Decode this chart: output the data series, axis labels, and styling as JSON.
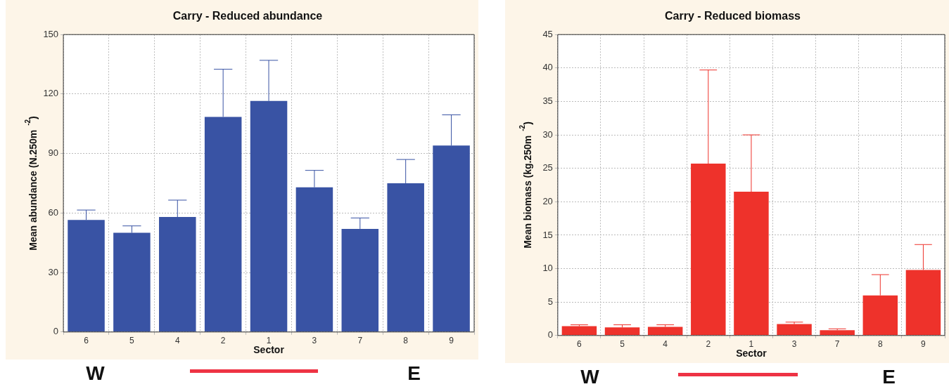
{
  "chart_data": [
    {
      "type": "bar",
      "title": "Carry - Reduced abundance",
      "xlabel": "Sector",
      "ylabel": "Mean abundance (N.250m$^{-2}$)",
      "categories": [
        "6",
        "5",
        "4",
        "2",
        "1",
        "3",
        "7",
        "8",
        "9"
      ],
      "values": [
        56.5,
        50,
        58,
        108.5,
        116.5,
        73,
        52,
        75,
        94
      ],
      "color": "#3953a4",
      "errors": [
        [
          56.5,
          61.5
        ],
        [
          50,
          53.5
        ],
        [
          58,
          66.5
        ],
        [
          108.5,
          132.5
        ],
        [
          116.5,
          137
        ],
        [
          73,
          81.5
        ],
        [
          52,
          57.5
        ],
        [
          75,
          87
        ],
        [
          94,
          109.5
        ]
      ],
      "ylim": [
        0,
        150
      ],
      "yticks": [
        0,
        30,
        60,
        90,
        120,
        150
      ],
      "grid": true,
      "annotations": [
        "W",
        "E"
      ]
    },
    {
      "type": "bar",
      "title": "Carry - Reduced biomass",
      "xlabel": "Sector",
      "ylabel": "Mean biomass (kg.250m$^{-2}$)",
      "categories": [
        "6",
        "5",
        "4",
        "2",
        "1",
        "3",
        "7",
        "8",
        "9"
      ],
      "values": [
        1.4,
        1.2,
        1.3,
        25.7,
        21.5,
        1.7,
        0.8,
        6,
        9.8
      ],
      "color": "#ee322b",
      "errors": [
        [
          1.4,
          1.6
        ],
        [
          1.2,
          1.6
        ],
        [
          1.3,
          1.6
        ],
        [
          25.7,
          39.7
        ],
        [
          21.5,
          30
        ],
        [
          1.7,
          2
        ],
        [
          0.8,
          1
        ],
        [
          6,
          9.1
        ],
        [
          9.8,
          13.6
        ]
      ],
      "ylim": [
        0,
        45
      ],
      "yticks": [
        0,
        5,
        10,
        15,
        20,
        25,
        30,
        35,
        40,
        45
      ],
      "grid": true,
      "annotations": [
        "W",
        "E"
      ]
    }
  ]
}
